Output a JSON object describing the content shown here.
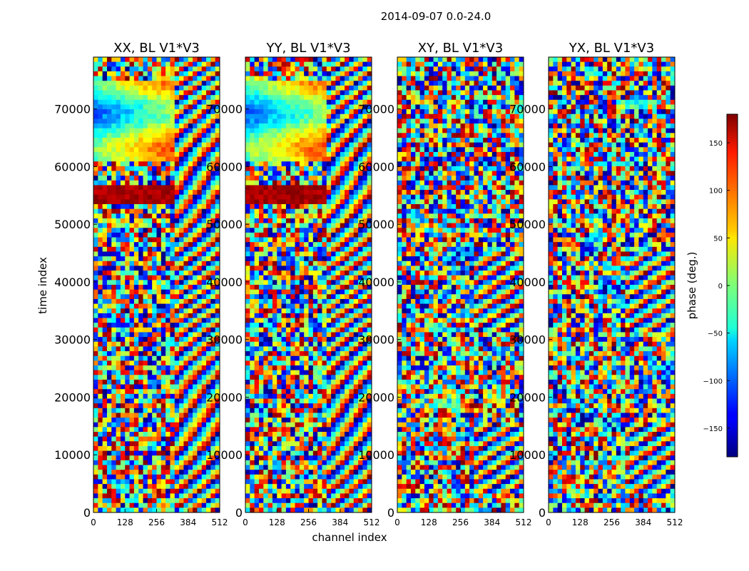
{
  "figure_title": "2014-09-07 0.0-24.0",
  "chart_data": {
    "type": "heatmap",
    "colormap": "jet",
    "xlabel": "channel index",
    "ylabel": "time index",
    "xlim": [
      0,
      512
    ],
    "ylim": [
      0,
      79000
    ],
    "x_ticks": [
      "0",
      "128",
      "256",
      "384",
      "512"
    ],
    "x_tick_values": [
      0,
      128,
      256,
      384,
      512
    ],
    "y_ticks": [
      "0",
      "10000",
      "20000",
      "30000",
      "40000",
      "50000",
      "60000",
      "70000"
    ],
    "y_tick_values": [
      0,
      10000,
      20000,
      30000,
      40000,
      50000,
      60000,
      70000
    ],
    "panels": [
      {
        "title": "XX, BL V1*V3",
        "kind": "parallel"
      },
      {
        "title": "YY, BL V1*V3",
        "kind": "parallel"
      },
      {
        "title": "XY, BL V1*V3",
        "kind": "cross"
      },
      {
        "title": "YX, BL V1*V3",
        "kind": "cross"
      }
    ],
    "colorbar": {
      "label": "phase (deg.)",
      "range": [
        -180,
        180
      ],
      "ticks": [
        "150",
        "100",
        "50",
        "0",
        "−50",
        "−100",
        "−150"
      ],
      "tick_values": [
        150,
        100,
        50,
        0,
        -50,
        -100,
        -150
      ]
    }
  }
}
